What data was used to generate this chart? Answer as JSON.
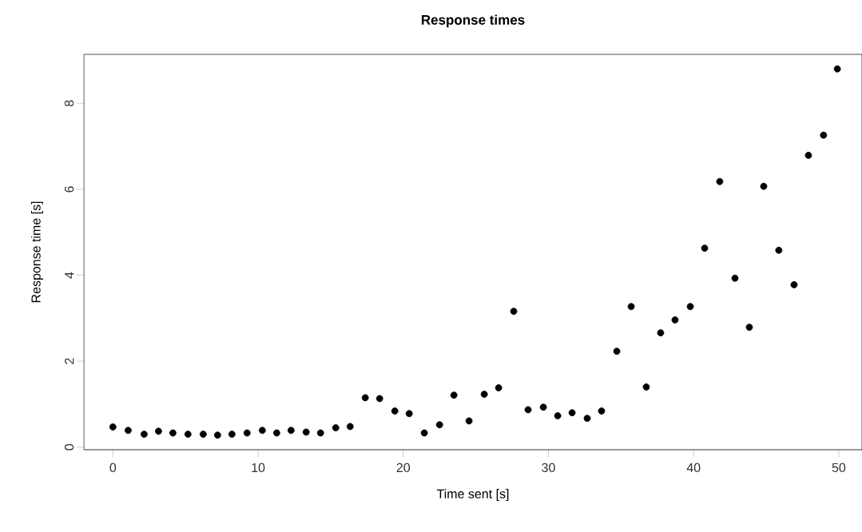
{
  "chart_data": {
    "type": "scatter",
    "title": "Response times",
    "xlabel": "Time sent [s]",
    "ylabel": "Response time [s]",
    "x": [
      0,
      1.05,
      2.15,
      3.14,
      4.13,
      5.17,
      6.22,
      7.21,
      8.2,
      9.24,
      10.29,
      11.28,
      12.27,
      13.31,
      14.3,
      15.35,
      16.34,
      17.38,
      18.37,
      19.42,
      20.41,
      21.45,
      22.5,
      23.49,
      24.53,
      25.58,
      26.57,
      27.61,
      28.6,
      29.65,
      30.64,
      31.63,
      32.67,
      33.66,
      34.71,
      35.7,
      36.74,
      37.73,
      38.72,
      39.77,
      40.76,
      41.8,
      42.85,
      43.84,
      44.83,
      45.87,
      46.92,
      47.91,
      48.95,
      49.9
    ],
    "values": [
      0.47,
      0.39,
      0.3,
      0.37,
      0.33,
      0.3,
      0.3,
      0.28,
      0.3,
      0.33,
      0.39,
      0.33,
      0.39,
      0.35,
      0.33,
      0.45,
      0.48,
      1.15,
      1.13,
      0.84,
      0.78,
      0.33,
      0.52,
      1.21,
      0.61,
      1.23,
      1.38,
      3.16,
      0.87,
      0.93,
      0.73,
      0.8,
      0.67,
      0.84,
      2.23,
      3.27,
      1.4,
      2.66,
      2.96,
      3.27,
      4.63,
      6.18,
      3.93,
      2.79,
      6.07,
      4.58,
      3.78,
      6.79,
      7.26,
      8.8
    ],
    "color": "#000000",
    "marker": "circle",
    "xlim": [
      -2,
      51.6
    ],
    "ylim": [
      -0.06,
      9.14
    ],
    "xticks": [
      0,
      10,
      20,
      30,
      40,
      50
    ],
    "yticks": [
      0,
      2,
      4,
      6,
      8
    ]
  }
}
